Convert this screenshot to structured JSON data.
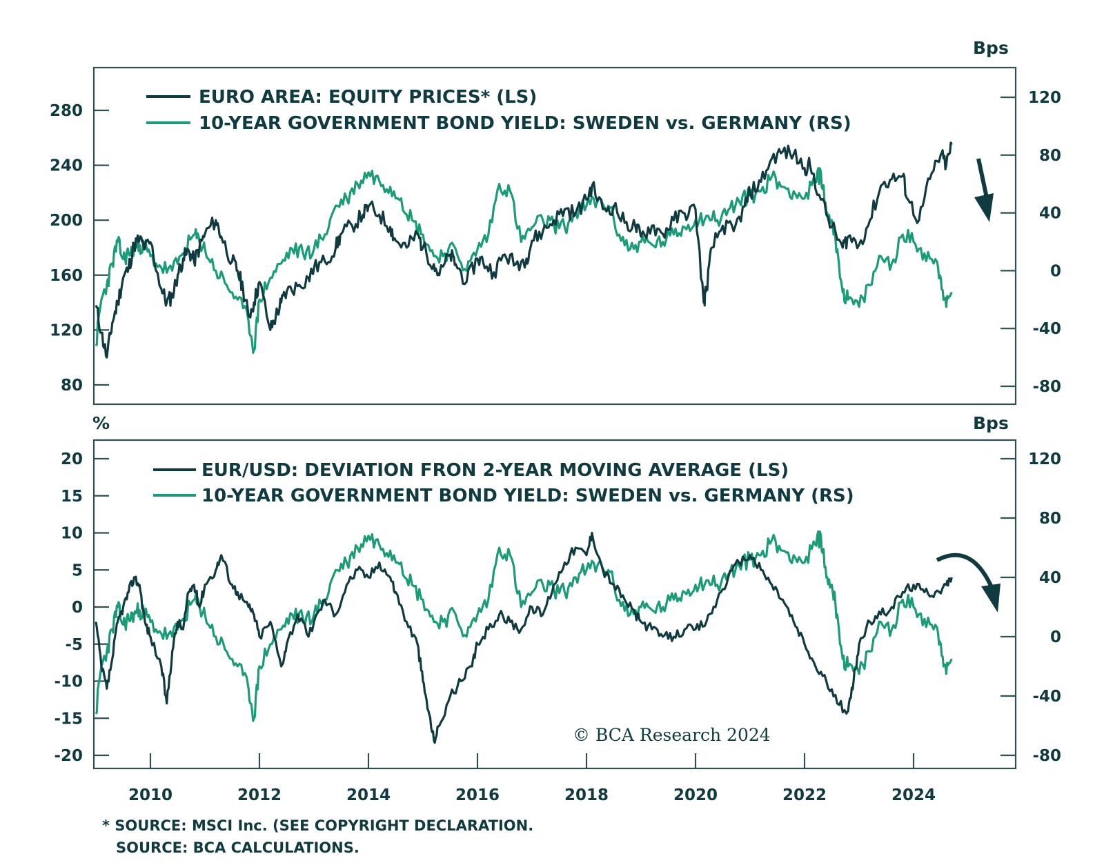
{
  "colors": {
    "dark_series": "#0f3a40",
    "green_series": "#1a9c78",
    "axis": "#2f4f55"
  },
  "chart_data": [
    {
      "type": "line",
      "id": "top-panel",
      "title": "",
      "legend": [
        {
          "label": "EURO AREA: EQUITY PRICES* (LS)",
          "color": "#0f3a40"
        },
        {
          "label": "10-YEAR GOVERNMENT BOND YIELD: SWEDEN vs. GERMANY (RS)",
          "color": "#1a9c78"
        }
      ],
      "legend_position": "top-left",
      "left_axis": {
        "label": "",
        "ticks": [
          80,
          120,
          160,
          200,
          240,
          280
        ],
        "ylim": [
          70,
          310
        ]
      },
      "right_axis": {
        "label": "Bps",
        "ticks": [
          -80,
          -40,
          0,
          40,
          80,
          120
        ],
        "ylim": [
          -85,
          150
        ]
      },
      "x_ticks": [
        "2010",
        "2012",
        "2014",
        "2016",
        "2018",
        "2020",
        "2022",
        "2024"
      ],
      "xlim": [
        2009.0,
        2025.5
      ],
      "annotation": "down-arrow",
      "series": [
        {
          "name": "EURO AREA: EQUITY PRICES* (LS)",
          "axis": "left",
          "x": [
            2009.0,
            2009.1,
            2009.2,
            2009.3,
            2009.4,
            2009.5,
            2009.6,
            2009.7,
            2009.8,
            2009.9,
            2010.0,
            2010.2,
            2010.3,
            2010.4,
            2010.5,
            2010.6,
            2010.7,
            2010.8,
            2010.9,
            2011.0,
            2011.2,
            2011.3,
            2011.5,
            2011.6,
            2011.7,
            2011.8,
            2011.9,
            2012.0,
            2012.2,
            2012.3,
            2012.4,
            2012.5,
            2012.7,
            2012.9,
            2013.0,
            2013.2,
            2013.4,
            2013.5,
            2013.7,
            2013.9,
            2014.0,
            2014.2,
            2014.4,
            2014.5,
            2014.7,
            2014.9,
            2015.0,
            2015.2,
            2015.3,
            2015.5,
            2015.6,
            2015.8,
            2016.0,
            2016.1,
            2016.3,
            2016.5,
            2016.7,
            2016.9,
            2017.0,
            2017.2,
            2017.4,
            2017.6,
            2017.8,
            2018.0,
            2018.1,
            2018.3,
            2018.5,
            2018.7,
            2018.9,
            2019.0,
            2019.2,
            2019.4,
            2019.6,
            2019.8,
            2020.0,
            2020.15,
            2020.2,
            2020.3,
            2020.5,
            2020.7,
            2020.9,
            2021.0,
            2021.2,
            2021.4,
            2021.6,
            2021.8,
            2022.0,
            2022.1,
            2022.3,
            2022.5,
            2022.7,
            2022.8,
            2023.0,
            2023.2,
            2023.4,
            2023.6,
            2023.8,
            2023.9,
            2024.1,
            2024.3,
            2024.5,
            2024.6,
            2024.7
          ],
          "values": [
            138,
            118,
            100,
            125,
            140,
            158,
            165,
            182,
            186,
            180,
            184,
            150,
            140,
            145,
            160,
            172,
            178,
            170,
            180,
            190,
            200,
            188,
            170,
            163,
            150,
            130,
            140,
            155,
            120,
            130,
            140,
            148,
            152,
            158,
            165,
            170,
            180,
            190,
            196,
            204,
            210,
            204,
            195,
            185,
            180,
            190,
            180,
            168,
            160,
            175,
            168,
            155,
            172,
            170,
            162,
            175,
            168,
            172,
            185,
            192,
            200,
            208,
            205,
            215,
            225,
            208,
            210,
            198,
            195,
            188,
            196,
            190,
            200,
            205,
            208,
            140,
            150,
            180,
            196,
            192,
            210,
            220,
            228,
            245,
            250,
            248,
            238,
            240,
            215,
            195,
            180,
            188,
            182,
            200,
            225,
            230,
            232,
            215,
            200,
            230,
            248,
            240,
            255
          ],
          "approximate": true
        },
        {
          "name": "10-YEAR GOVERNMENT BOND YIELD: SWEDEN vs. GERMANY (RS)",
          "axis": "right",
          "x": [
            2009.0,
            2009.1,
            2009.2,
            2009.3,
            2009.4,
            2009.5,
            2009.6,
            2009.7,
            2009.8,
            2009.9,
            2010.0,
            2010.2,
            2010.4,
            2010.6,
            2010.8,
            2010.9,
            2011.0,
            2011.2,
            2011.4,
            2011.6,
            2011.8,
            2011.9,
            2012.0,
            2012.2,
            2012.4,
            2012.6,
            2012.8,
            2013.0,
            2013.2,
            2013.4,
            2013.6,
            2013.8,
            2014.0,
            2014.2,
            2014.4,
            2014.6,
            2014.8,
            2015.0,
            2015.2,
            2015.4,
            2015.6,
            2015.8,
            2016.0,
            2016.2,
            2016.4,
            2016.6,
            2016.8,
            2017.0,
            2017.2,
            2017.4,
            2017.6,
            2017.8,
            2018.0,
            2018.2,
            2018.4,
            2018.6,
            2018.8,
            2019.0,
            2019.2,
            2019.4,
            2019.6,
            2019.8,
            2020.0,
            2020.2,
            2020.4,
            2020.6,
            2020.8,
            2021.0,
            2021.2,
            2021.4,
            2021.6,
            2021.8,
            2022.0,
            2022.2,
            2022.3,
            2022.4,
            2022.5,
            2022.6,
            2022.7,
            2022.8,
            2023.0,
            2023.2,
            2023.4,
            2023.6,
            2023.8,
            2024.0,
            2024.2,
            2024.4,
            2024.5,
            2024.6,
            2024.7
          ],
          "values": [
            -52,
            -20,
            -10,
            5,
            20,
            8,
            12,
            15,
            18,
            15,
            10,
            2,
            0,
            12,
            25,
            20,
            15,
            0,
            -10,
            -20,
            -35,
            -55,
            -20,
            -5,
            5,
            15,
            12,
            15,
            25,
            45,
            50,
            60,
            68,
            62,
            58,
            50,
            35,
            25,
            10,
            12,
            15,
            0,
            15,
            25,
            60,
            55,
            20,
            30,
            35,
            32,
            30,
            40,
            45,
            48,
            45,
            25,
            15,
            20,
            18,
            20,
            25,
            30,
            35,
            38,
            35,
            42,
            48,
            52,
            55,
            65,
            58,
            55,
            50,
            62,
            68,
            40,
            35,
            15,
            -15,
            -20,
            -25,
            -10,
            10,
            5,
            25,
            20,
            12,
            8,
            -5,
            -25,
            -15
          ],
          "approximate": true
        }
      ]
    },
    {
      "type": "line",
      "id": "bottom-panel",
      "title": "",
      "legend": [
        {
          "label": "EUR/USD: DEVIATION FRON 2-YEAR MOVING AVERAGE (LS)",
          "color": "#0f3a40"
        },
        {
          "label": "10-YEAR GOVERNMENT BOND YIELD: SWEDEN vs. GERMANY (RS)",
          "color": "#1a9c78"
        }
      ],
      "legend_position": "top-left",
      "left_axis": {
        "label": "%",
        "ticks": [
          -20,
          -15,
          -10,
          -5,
          0,
          5,
          10,
          15,
          20
        ],
        "ylim": [
          -22,
          22
        ]
      },
      "right_axis": {
        "label": "Bps",
        "ticks": [
          -80,
          -40,
          0,
          40,
          80,
          120
        ],
        "ylim": [
          -90,
          140
        ]
      },
      "x_ticks": [
        "2010",
        "2012",
        "2014",
        "2016",
        "2018",
        "2020",
        "2022",
        "2024"
      ],
      "xlim": [
        2009.0,
        2025.5
      ],
      "annotation": "curved-down-arrow",
      "watermark": "© BCA Research 2024",
      "series": [
        {
          "name": "EUR/USD: DEVIATION FRON 2-YEAR MOVING AVERAGE (LS)",
          "axis": "left",
          "x": [
            2009.0,
            2009.1,
            2009.2,
            2009.3,
            2009.4,
            2009.5,
            2009.6,
            2009.7,
            2009.8,
            2009.9,
            2010.0,
            2010.2,
            2010.3,
            2010.4,
            2010.5,
            2010.6,
            2010.7,
            2010.8,
            2010.9,
            2011.0,
            2011.2,
            2011.3,
            2011.5,
            2011.6,
            2011.8,
            2011.9,
            2012.0,
            2012.2,
            2012.4,
            2012.5,
            2012.7,
            2012.9,
            2013.0,
            2013.2,
            2013.4,
            2013.6,
            2013.8,
            2014.0,
            2014.2,
            2014.4,
            2014.5,
            2014.7,
            2014.9,
            2015.0,
            2015.1,
            2015.2,
            2015.3,
            2015.5,
            2015.7,
            2015.9,
            2016.0,
            2016.2,
            2016.4,
            2016.6,
            2016.8,
            2017.0,
            2017.2,
            2017.4,
            2017.6,
            2017.8,
            2018.0,
            2018.1,
            2018.3,
            2018.5,
            2018.7,
            2018.9,
            2019.0,
            2019.2,
            2019.4,
            2019.6,
            2019.8,
            2020.0,
            2020.2,
            2020.4,
            2020.6,
            2020.8,
            2021.0,
            2021.2,
            2021.4,
            2021.6,
            2021.8,
            2022.0,
            2022.2,
            2022.4,
            2022.6,
            2022.8,
            2022.9,
            2023.0,
            2023.2,
            2023.4,
            2023.6,
            2023.8,
            2024.0,
            2024.2,
            2024.4,
            2024.6,
            2024.7
          ],
          "values": [
            -2,
            -8,
            -11,
            -7,
            -2,
            0,
            2,
            4,
            3,
            -2,
            -4,
            -8,
            -13,
            -6,
            -2,
            -3,
            2,
            3,
            0,
            3,
            5,
            7,
            3,
            2,
            0,
            -1,
            -4,
            -2,
            -8,
            -5,
            -1,
            -4,
            -2,
            1,
            -1,
            3,
            5,
            4,
            6,
            4,
            2,
            -2,
            -5,
            -10,
            -14,
            -18,
            -16,
            -12,
            -10,
            -8,
            -5,
            -3,
            -1,
            -2,
            -3,
            0,
            -1,
            3,
            6,
            8,
            7,
            10,
            5,
            3,
            1,
            -1,
            -2,
            -3,
            -4,
            -4,
            -3,
            -3,
            -2,
            1,
            4,
            6,
            7,
            5,
            3,
            1,
            -2,
            -5,
            -8,
            -10,
            -13,
            -14,
            -10,
            -5,
            -2,
            -1,
            0,
            2,
            3,
            2,
            2,
            3,
            4
          ],
          "approximate": true
        },
        {
          "name": "10-YEAR GOVERNMENT BOND YIELD: SWEDEN vs. GERMANY (RS)",
          "axis": "right",
          "x": [
            2009.0,
            2009.1,
            2009.2,
            2009.3,
            2009.4,
            2009.5,
            2009.6,
            2009.7,
            2009.8,
            2009.9,
            2010.0,
            2010.2,
            2010.4,
            2010.6,
            2010.8,
            2010.9,
            2011.0,
            2011.2,
            2011.4,
            2011.6,
            2011.8,
            2011.9,
            2012.0,
            2012.2,
            2012.4,
            2012.6,
            2012.8,
            2013.0,
            2013.2,
            2013.4,
            2013.6,
            2013.8,
            2014.0,
            2014.2,
            2014.4,
            2014.6,
            2014.8,
            2015.0,
            2015.2,
            2015.4,
            2015.6,
            2015.8,
            2016.0,
            2016.2,
            2016.4,
            2016.6,
            2016.8,
            2017.0,
            2017.2,
            2017.4,
            2017.6,
            2017.8,
            2018.0,
            2018.2,
            2018.4,
            2018.6,
            2018.8,
            2019.0,
            2019.2,
            2019.4,
            2019.6,
            2019.8,
            2020.0,
            2020.2,
            2020.4,
            2020.6,
            2020.8,
            2021.0,
            2021.2,
            2021.4,
            2021.6,
            2021.8,
            2022.0,
            2022.2,
            2022.3,
            2022.4,
            2022.5,
            2022.6,
            2022.7,
            2022.8,
            2023.0,
            2023.2,
            2023.4,
            2023.6,
            2023.8,
            2024.0,
            2024.2,
            2024.4,
            2024.5,
            2024.6,
            2024.7
          ],
          "values": [
            -52,
            -20,
            -10,
            5,
            20,
            8,
            12,
            15,
            18,
            15,
            10,
            2,
            0,
            12,
            25,
            20,
            15,
            0,
            -10,
            -20,
            -35,
            -55,
            -20,
            -5,
            5,
            15,
            12,
            15,
            25,
            45,
            50,
            60,
            68,
            62,
            58,
            50,
            35,
            25,
            10,
            12,
            15,
            0,
            15,
            25,
            60,
            55,
            20,
            30,
            35,
            32,
            30,
            40,
            45,
            48,
            45,
            25,
            15,
            20,
            18,
            20,
            25,
            30,
            35,
            38,
            35,
            42,
            48,
            52,
            55,
            65,
            58,
            55,
            50,
            62,
            68,
            40,
            35,
            15,
            -15,
            -20,
            -25,
            -10,
            10,
            5,
            25,
            20,
            12,
            8,
            -5,
            -25,
            -15
          ],
          "approximate": true
        }
      ]
    }
  ],
  "footnotes": [
    "* SOURCE: MSCI Inc. (SEE COPYRIGHT DECLARATION.",
    "SOURCE: BCA CALCULATIONS."
  ],
  "watermark": "© BCA Research 2024"
}
